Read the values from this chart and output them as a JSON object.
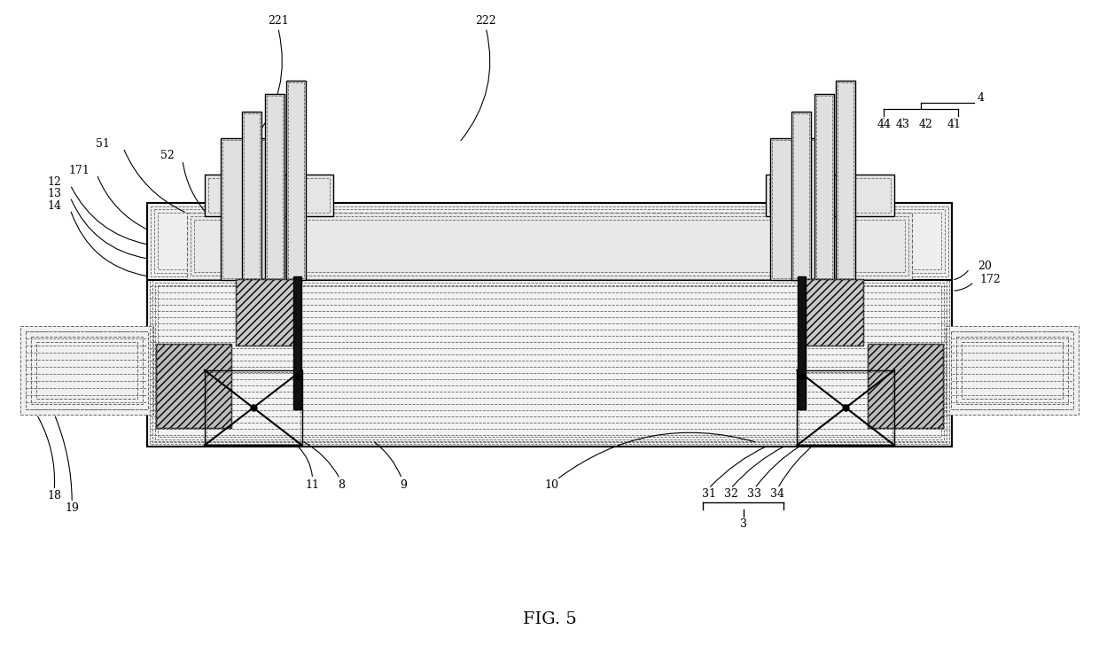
{
  "title": "FIG. 5",
  "bg_color": "#ffffff",
  "line_color": "#000000",
  "dashed_color": "#666666",
  "fig_width": 12.4,
  "fig_height": 7.37
}
